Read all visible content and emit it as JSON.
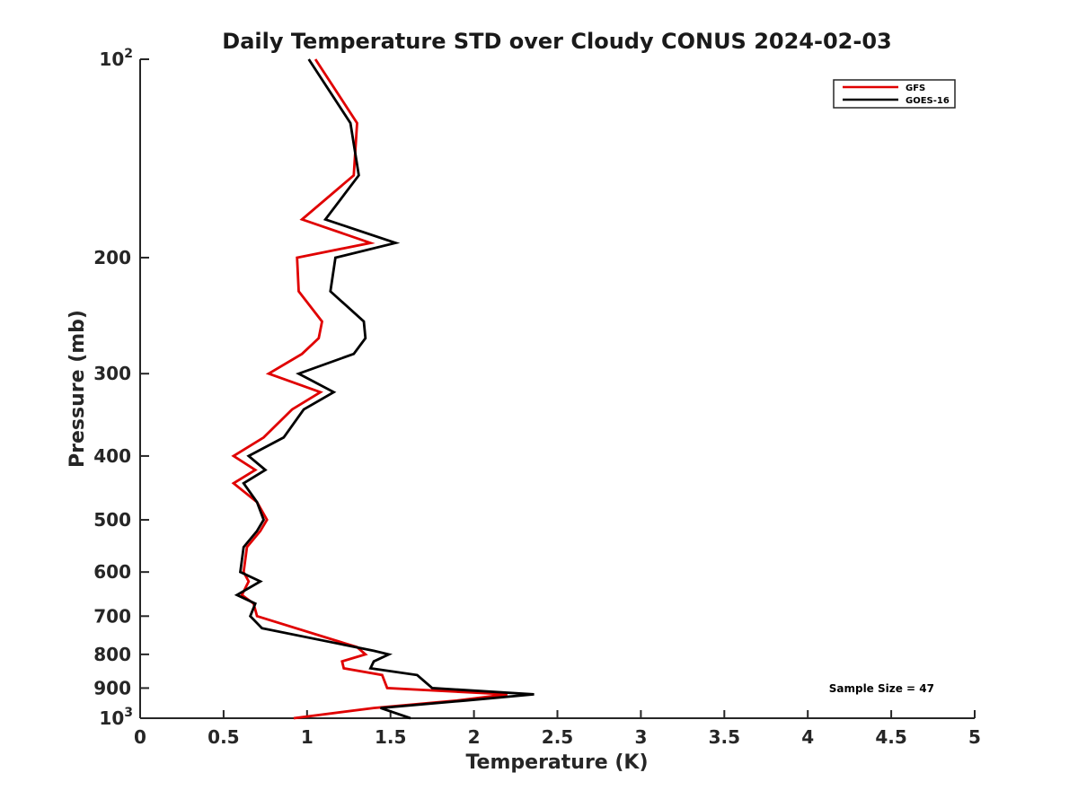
{
  "chart_data": {
    "type": "line",
    "title": "Daily Temperature STD over Cloudy CONUS 2024-02-03",
    "xlabel": "Temperature (K)",
    "ylabel": "Pressure (mb)",
    "xlim": [
      0,
      5
    ],
    "ylim": [
      100,
      1000
    ],
    "y_scale": "log",
    "y_reversed": true,
    "grid": false,
    "legend_position": "top-right",
    "x_ticks": [
      0,
      0.5,
      1,
      1.5,
      2,
      2.5,
      3,
      3.5,
      4,
      4.5,
      5
    ],
    "x_tick_labels": [
      "0",
      "0.5",
      "1",
      "1.5",
      "2",
      "2.5",
      "3",
      "3.5",
      "4",
      "4.5",
      "5"
    ],
    "y_ticks": [
      100,
      200,
      300,
      400,
      500,
      600,
      700,
      800,
      900,
      1000
    ],
    "y_tick_labels": [
      {
        "base": "10",
        "exp": "2"
      },
      {
        "base": "200"
      },
      {
        "base": "300"
      },
      {
        "base": "400"
      },
      {
        "base": "500"
      },
      {
        "base": "600"
      },
      {
        "base": "700"
      },
      {
        "base": "800"
      },
      {
        "base": "900"
      },
      {
        "base": "10",
        "exp": "3"
      }
    ],
    "series": [
      {
        "name": "GFS",
        "color": "#e00000",
        "points": [
          [
            1.05,
            100
          ],
          [
            1.3,
            125
          ],
          [
            1.28,
            150
          ],
          [
            0.97,
            175
          ],
          [
            1.38,
            190
          ],
          [
            0.94,
            200
          ],
          [
            0.95,
            225
          ],
          [
            1.09,
            250
          ],
          [
            1.07,
            265
          ],
          [
            0.97,
            280
          ],
          [
            0.77,
            300
          ],
          [
            1.08,
            320
          ],
          [
            0.91,
            340
          ],
          [
            0.74,
            375
          ],
          [
            0.56,
            400
          ],
          [
            0.69,
            420
          ],
          [
            0.56,
            440
          ],
          [
            0.7,
            470
          ],
          [
            0.76,
            500
          ],
          [
            0.72,
            520
          ],
          [
            0.64,
            550
          ],
          [
            0.62,
            600
          ],
          [
            0.65,
            620
          ],
          [
            0.61,
            650
          ],
          [
            0.68,
            670
          ],
          [
            0.7,
            700
          ],
          [
            1.3,
            780
          ],
          [
            1.35,
            800
          ],
          [
            1.21,
            820
          ],
          [
            1.22,
            840
          ],
          [
            1.45,
            860
          ],
          [
            1.48,
            900
          ],
          [
            2.2,
            920
          ],
          [
            1.9,
            940
          ],
          [
            1.4,
            965
          ],
          [
            0.92,
            1000
          ]
        ]
      },
      {
        "name": "GOES-16",
        "color": "#000000",
        "points": [
          [
            1.01,
            100
          ],
          [
            1.26,
            125
          ],
          [
            1.31,
            150
          ],
          [
            1.11,
            175
          ],
          [
            1.53,
            190
          ],
          [
            1.17,
            200
          ],
          [
            1.14,
            225
          ],
          [
            1.34,
            250
          ],
          [
            1.35,
            265
          ],
          [
            1.28,
            280
          ],
          [
            0.95,
            300
          ],
          [
            1.16,
            320
          ],
          [
            0.98,
            340
          ],
          [
            0.86,
            375
          ],
          [
            0.65,
            400
          ],
          [
            0.75,
            420
          ],
          [
            0.62,
            440
          ],
          [
            0.7,
            470
          ],
          [
            0.74,
            500
          ],
          [
            0.7,
            520
          ],
          [
            0.62,
            550
          ],
          [
            0.6,
            600
          ],
          [
            0.72,
            620
          ],
          [
            0.58,
            650
          ],
          [
            0.69,
            670
          ],
          [
            0.66,
            700
          ],
          [
            0.73,
            730
          ],
          [
            1.4,
            790
          ],
          [
            1.49,
            800
          ],
          [
            1.4,
            820
          ],
          [
            1.38,
            840
          ],
          [
            1.66,
            860
          ],
          [
            1.75,
            900
          ],
          [
            2.36,
            920
          ],
          [
            1.95,
            940
          ],
          [
            1.44,
            965
          ],
          [
            1.62,
            1000
          ]
        ]
      }
    ],
    "annotations": [
      "Sample Size = 47"
    ]
  }
}
